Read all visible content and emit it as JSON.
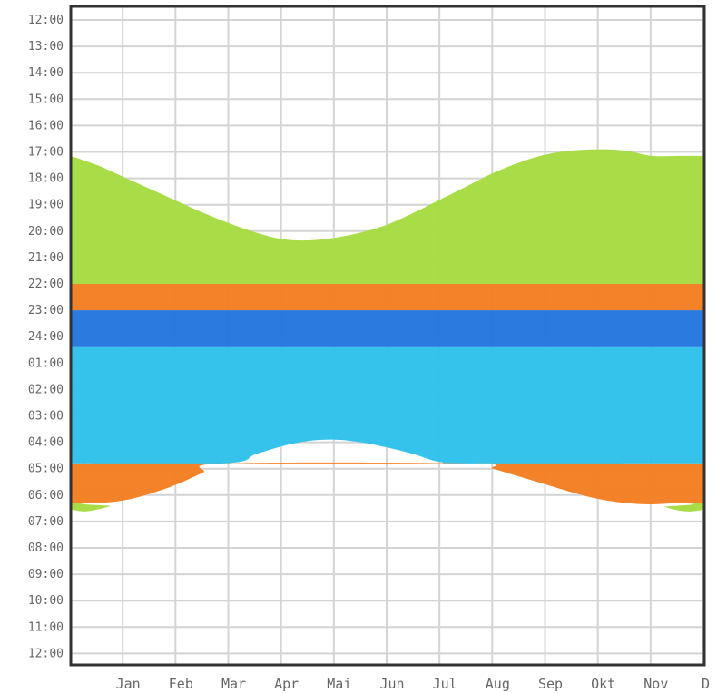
{
  "chart_data": {
    "type": "area",
    "y_tick_labels": [
      "12:00",
      "13:00",
      "14:00",
      "15:00",
      "16:00",
      "17:00",
      "18:00",
      "19:00",
      "20:00",
      "21:00",
      "22:00",
      "23:00",
      "24:00",
      "01:00",
      "02:00",
      "03:00",
      "04:00",
      "05:00",
      "06:00",
      "07:00",
      "08:00",
      "09:00",
      "10:00",
      "11:00",
      "12:00"
    ],
    "x_tick_labels": [
      "Jan",
      "Feb",
      "Mar",
      "Apr",
      "Mai",
      "Jun",
      "Jul",
      "Aug",
      "Sep",
      "Okt",
      "Nov",
      "D"
    ],
    "x_month_boundaries": [
      0,
      1,
      2,
      3,
      4,
      5,
      6,
      7,
      8,
      9,
      10,
      11,
      12
    ],
    "ylim_hours_since_noon": [
      0,
      24
    ],
    "grid": true,
    "bands": [
      {
        "color": "#a6dc42",
        "lower": 10,
        "upper_curve": {
          "x": [
            0,
            0.5,
            1,
            1.5,
            2,
            2.5,
            3,
            3.5,
            4,
            4.5,
            5,
            5.5,
            6,
            6.5,
            7,
            7.5,
            8,
            8.5,
            9,
            9.5,
            10,
            10.5,
            11,
            11.5,
            12
          ],
          "y": [
            5.15,
            5.5,
            5.95,
            6.4,
            6.85,
            7.3,
            7.7,
            8.05,
            8.3,
            8.35,
            8.25,
            8.05,
            7.75,
            7.3,
            6.8,
            6.3,
            5.8,
            5.4,
            5.1,
            4.95,
            4.9,
            4.95,
            5.15,
            5.15,
            5.15
          ]
        }
      },
      {
        "color": "#f37e22",
        "lower": 10,
        "upper": 11
      },
      {
        "color": "#2476de",
        "lower": 11,
        "upper": 12.4
      },
      {
        "color": "#30c1ea",
        "upper": 12.4,
        "lower_curve": {
          "x": [
            0,
            2.9,
            3.5,
            4,
            4.5,
            5,
            5.5,
            6,
            6.5,
            7,
            7.6,
            12
          ],
          "y": [
            16.8,
            16.8,
            16.45,
            16.15,
            15.95,
            15.9,
            16.0,
            16.2,
            16.45,
            16.75,
            16.8,
            16.8
          ]
        }
      },
      {
        "color": "#f37e22",
        "upper": 16.8,
        "lower_curve": {
          "x": [
            0,
            0.5,
            1,
            1.5,
            2,
            2.5,
            2.9,
            7.6,
            8,
            8.5,
            9,
            9.5,
            10,
            10.5,
            11,
            11.5,
            12
          ],
          "y": [
            18.3,
            18.3,
            18.2,
            17.95,
            17.6,
            17.15,
            16.8,
            16.8,
            17.0,
            17.3,
            17.6,
            17.9,
            18.15,
            18.3,
            18.35,
            18.3,
            18.3
          ]
        }
      },
      {
        "color": "#a6dc42",
        "upper": 18.3,
        "lower_curve": {
          "x": [
            0,
            0.25,
            0.5,
            0.75,
            1,
            11,
            11.25,
            11.5,
            11.75,
            12
          ],
          "y": [
            18.55,
            18.62,
            18.55,
            18.42,
            18.3,
            18.3,
            18.45,
            18.58,
            18.62,
            18.55
          ]
        }
      }
    ]
  }
}
